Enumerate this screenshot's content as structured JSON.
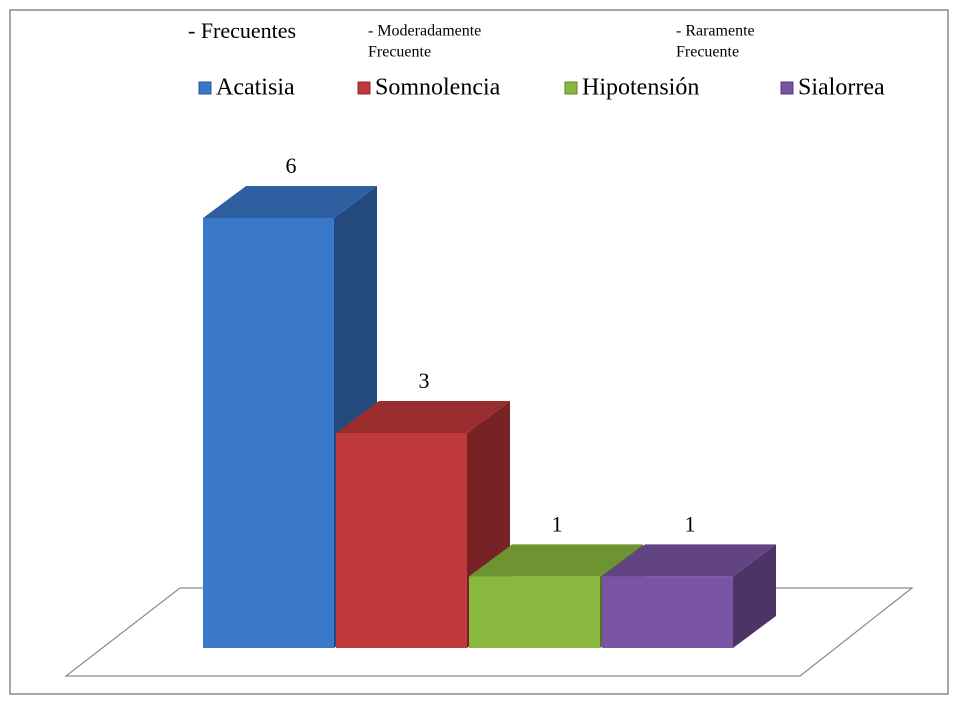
{
  "chart_data": {
    "type": "bar3d",
    "annotations": [
      [
        "- Frecuentes"
      ],
      [
        "- Moderadamente",
        "Frecuente"
      ],
      [
        "- Raramente",
        "Frecuente"
      ]
    ],
    "series": [
      {
        "name": "Acatisia",
        "color": "#3a78c9",
        "values": [
          6
        ]
      },
      {
        "name": "Somnolencia",
        "color": "#c0393b",
        "values": [
          3
        ]
      },
      {
        "name": "Hipotensión",
        "color": "#8ab83f",
        "values": [
          1
        ]
      },
      {
        "name": "Sialorrea",
        "color": "#7b55a5",
        "values": [
          1
        ]
      }
    ],
    "legend": "top"
  }
}
